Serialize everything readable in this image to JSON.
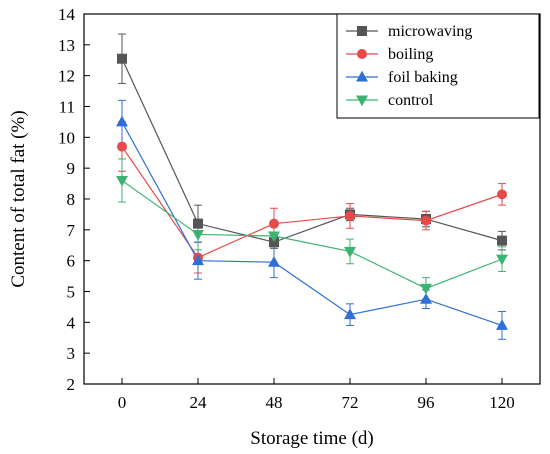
{
  "chart_data": {
    "type": "line",
    "xlabel": "Storage time (d)",
    "ylabel": "Content of total fat (%)",
    "x": [
      0,
      24,
      48,
      72,
      96,
      120
    ],
    "xticks": [
      "0",
      "24",
      "48",
      "72",
      "96",
      "120"
    ],
    "yticks": [
      "2",
      "3",
      "4",
      "5",
      "6",
      "7",
      "8",
      "9",
      "10",
      "11",
      "12",
      "13",
      "14"
    ],
    "ylim": [
      2,
      14
    ],
    "legend_position": "top-right",
    "grid": false,
    "series": [
      {
        "name": "microwaving",
        "color": "#555555",
        "marker": "square",
        "values": [
          12.55,
          7.2,
          6.6,
          7.5,
          7.35,
          6.65
        ],
        "errors": [
          0.8,
          0.6,
          0.2,
          0.2,
          0.25,
          0.3
        ]
      },
      {
        "name": "boiling",
        "color": "#e84a4a",
        "marker": "circle",
        "values": [
          9.7,
          6.1,
          7.2,
          7.45,
          7.3,
          8.15
        ],
        "errors": [
          0.8,
          0.5,
          0.5,
          0.4,
          0.3,
          0.35
        ]
      },
      {
        "name": "foil baking",
        "color": "#2f6fd6",
        "marker": "triangle-up",
        "values": [
          10.5,
          6.0,
          5.95,
          4.25,
          4.75,
          3.9
        ],
        "errors": [
          0.7,
          0.6,
          0.5,
          0.35,
          0.3,
          0.45
        ]
      },
      {
        "name": "control",
        "color": "#3cb371",
        "marker": "triangle-down",
        "values": [
          8.6,
          6.85,
          6.8,
          6.3,
          5.1,
          6.05
        ],
        "errors": [
          0.7,
          0.5,
          0.3,
          0.4,
          0.35,
          0.4
        ]
      }
    ]
  }
}
